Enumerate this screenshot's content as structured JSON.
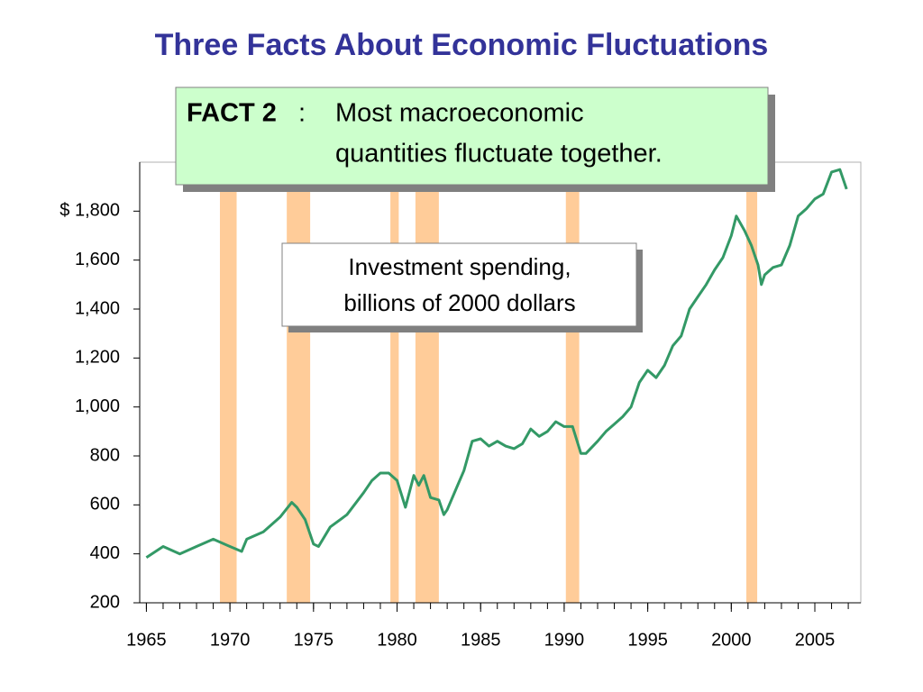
{
  "chart_data": {
    "type": "line",
    "title": "Three Facts About Economic Fluctuations",
    "fact_label": "FACT 2",
    "fact_colon": ":",
    "fact_text": [
      "Most macroeconomic",
      "quantities fluctuate together."
    ],
    "annotation": [
      "Investment spending,",
      "billions of 2000 dollars"
    ],
    "x": [
      1965.0,
      1966.0,
      1967.0,
      1968.0,
      1969.0,
      1970.0,
      1970.7,
      1971.0,
      1972.0,
      1973.0,
      1973.7,
      1974.0,
      1974.5,
      1975.0,
      1975.3,
      1976.0,
      1977.0,
      1978.0,
      1978.5,
      1979.0,
      1979.5,
      1980.0,
      1980.5,
      1981.0,
      1981.3,
      1981.6,
      1982.0,
      1982.5,
      1982.8,
      1983.0,
      1983.5,
      1984.0,
      1984.5,
      1985.0,
      1985.5,
      1986.0,
      1986.5,
      1987.0,
      1987.5,
      1988.0,
      1988.5,
      1989.0,
      1989.5,
      1990.0,
      1990.5,
      1991.0,
      1991.3,
      1992.0,
      1992.5,
      1993.0,
      1993.5,
      1994.0,
      1994.5,
      1995.0,
      1995.5,
      1996.0,
      1996.5,
      1997.0,
      1997.5,
      1998.0,
      1998.5,
      1999.0,
      1999.5,
      2000.0,
      2000.3,
      2000.8,
      2001.2,
      2001.6,
      2001.8,
      2002.0,
      2002.5,
      2003.0,
      2003.5,
      2004.0,
      2004.5,
      2005.0,
      2005.5,
      2006.0,
      2006.5,
      2006.9
    ],
    "series": [
      {
        "color": "#339966",
        "values": [
          385,
          430,
          400,
          430,
          460,
          430,
          410,
          460,
          490,
          550,
          610,
          590,
          540,
          440,
          430,
          510,
          560,
          650,
          700,
          730,
          730,
          700,
          590,
          720,
          680,
          720,
          630,
          620,
          560,
          580,
          660,
          740,
          860,
          870,
          840,
          860,
          840,
          830,
          850,
          910,
          880,
          900,
          940,
          920,
          920,
          810,
          810,
          860,
          900,
          930,
          960,
          1000,
          1100,
          1150,
          1120,
          1170,
          1250,
          1290,
          1400,
          1450,
          1500,
          1560,
          1610,
          1700,
          1780,
          1720,
          1660,
          1580,
          1500,
          1540,
          1570,
          1580,
          1660,
          1780,
          1810,
          1850,
          1870,
          1960,
          1970,
          1890
        ]
      }
    ],
    "shaded_regions": [
      [
        1969.4,
        1970.4
      ],
      [
        1973.4,
        1974.8
      ],
      [
        1979.6,
        1980.1
      ],
      [
        1981.1,
        1982.5
      ],
      [
        1990.1,
        1990.9
      ],
      [
        2000.9,
        2001.55
      ]
    ],
    "shaded_color": "#ffcc99",
    "xlim": [
      1964.6,
      2007.75
    ],
    "ylim": [
      200,
      2000
    ],
    "xticks": [
      1965,
      1970,
      1975,
      1980,
      1985,
      1990,
      1995,
      2000,
      2005
    ],
    "xminorticks": [
      1965,
      1966,
      1967,
      1968,
      1969,
      1970,
      1971,
      1972,
      1973,
      1974,
      1975,
      1976,
      1977,
      1978,
      1979,
      1980,
      1981,
      1982,
      1983,
      1984,
      1985,
      1986,
      1987,
      1988,
      1989,
      1990,
      1991,
      1992,
      1993,
      1994,
      1995,
      1996,
      1997,
      1998,
      1999,
      2000,
      2001,
      2002,
      2003,
      2004,
      2005,
      2006,
      2007
    ],
    "yticks": [
      200,
      400,
      600,
      800,
      {
        "value": 1000,
        "label": "1,000"
      },
      {
        "value": 1200,
        "label": "1,200"
      },
      {
        "value": 1400,
        "label": "1,400"
      },
      {
        "value": 1600,
        "label": "1,600"
      },
      {
        "value": 1800,
        "label": "$ 1,800"
      }
    ]
  }
}
